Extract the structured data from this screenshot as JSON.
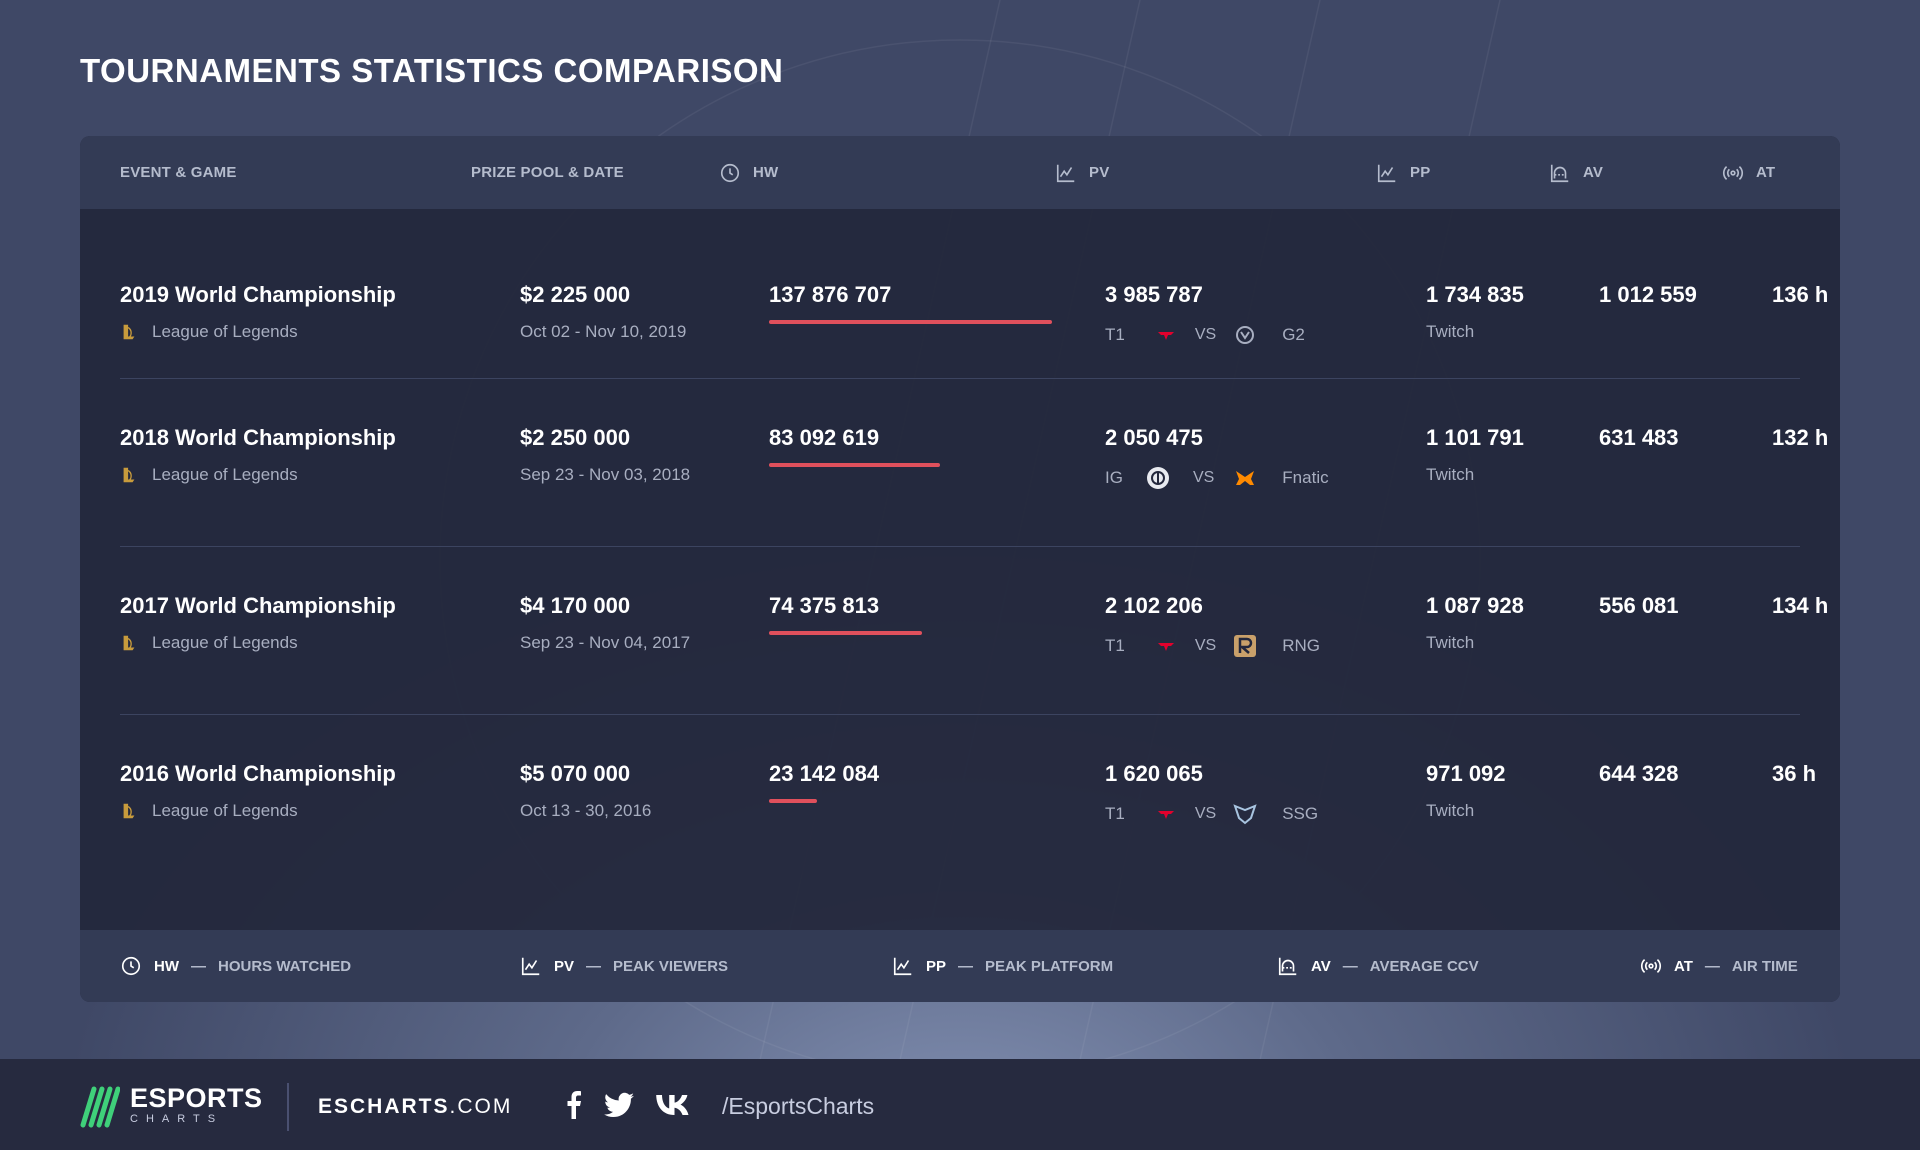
{
  "page": {
    "title": "TOURNAMENTS STATISTICS COMPARISON"
  },
  "table": {
    "headers": {
      "event_game": "EVENT & GAME",
      "prize_date": "PRIZE POOL & DATE",
      "hw": "HW",
      "pv": "PV",
      "pp": "PP",
      "av": "AV",
      "at": "AT"
    },
    "header_icons": {
      "hw": "clock-icon",
      "pv": "chart-icon",
      "pp": "chart-icon",
      "av": "average-chart-icon",
      "at": "broadcast-icon"
    },
    "vs_label": "VS",
    "rows": [
      {
        "event": "2019 World Championship",
        "game": "League of Legends",
        "prize": "$2 225 000",
        "date": "Oct 02 - Nov 10, 2019",
        "hw": "137 876 707",
        "hw_value": 137876707,
        "pv": "3 985 787",
        "team1": "T1",
        "team1_logo": "t1-logo",
        "team2": "G2",
        "team2_logo": "g2-logo",
        "pp_value": "1 734 835",
        "pp_platform": "Twitch",
        "av": "1 012 559",
        "at": "136 h"
      },
      {
        "event": "2018 World Championship",
        "game": "League of Legends",
        "prize": "$2 250 000",
        "date": "Sep 23 - Nov 03, 2018",
        "hw": "83 092 619",
        "hw_value": 83092619,
        "pv": "2 050 475",
        "team1": "IG",
        "team1_logo": "ig-logo",
        "team2": "Fnatic",
        "team2_logo": "fnatic-logo",
        "pp_value": "1 101 791",
        "pp_platform": "Twitch",
        "av": "631 483",
        "at": "132 h"
      },
      {
        "event": "2017 World Championship",
        "game": "League of Legends",
        "prize": "$4 170 000",
        "date": "Sep 23 - Nov 04, 2017",
        "hw": "74 375 813",
        "hw_value": 74375813,
        "pv": "2 102 206",
        "team1": "T1",
        "team1_logo": "t1-logo",
        "team2": "RNG",
        "team2_logo": "rng-logo",
        "pp_value": "1 087 928",
        "pp_platform": "Twitch",
        "av": "556 081",
        "at": "134 h"
      },
      {
        "event": "2016 World Championship",
        "game": "League of Legends",
        "prize": "$5 070 000",
        "date": "Oct 13 - 30, 2016",
        "hw": "23 142 084",
        "hw_value": 23142084,
        "pv": "1 620 065",
        "team1": "T1",
        "team1_logo": "t1-logo",
        "team2": "SSG",
        "team2_logo": "ssg-logo",
        "pp_value": "971 092",
        "pp_platform": "Twitch",
        "av": "644 328",
        "at": "36 h"
      }
    ]
  },
  "legend": [
    {
      "abbr": "HW",
      "dash": "—",
      "text": "HOURS WATCHED",
      "icon": "clock-icon"
    },
    {
      "abbr": "PV",
      "dash": "—",
      "text": "PEAK VIEWERS",
      "icon": "chart-icon"
    },
    {
      "abbr": "PP",
      "dash": "—",
      "text": "PEAK PLATFORM",
      "icon": "chart-icon"
    },
    {
      "abbr": "AV",
      "dash": "—",
      "text": "AVERAGE CCV",
      "icon": "average-chart-icon"
    },
    {
      "abbr": "AT",
      "dash": "—",
      "text": "AIR TIME",
      "icon": "broadcast-icon"
    }
  ],
  "footer": {
    "brand_main": "ESPORTS",
    "brand_sub": "CHARTS",
    "site_bold": "ESCHARTS",
    "site_rest": ".COM",
    "social_icons": [
      "facebook-icon",
      "twitter-icon",
      "vk-icon"
    ],
    "handle": "/EsportsCharts"
  },
  "colors": {
    "accent_bar": "#e0505c",
    "brand_green": "#3fd07a",
    "card_bg": "#23273c",
    "header_bg": "#333b55"
  }
}
